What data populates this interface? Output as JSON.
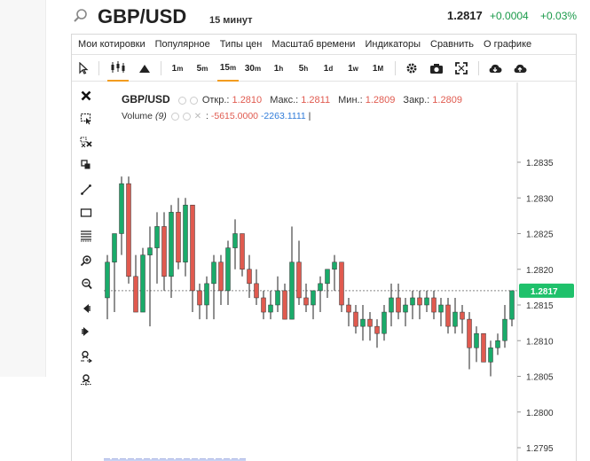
{
  "header": {
    "symbol": "GBP/USD",
    "timeframe": "15 минут",
    "price": "1.2817",
    "change": "+0.0004",
    "change_pct": "+0.03%"
  },
  "menu": [
    "Мои котировки",
    "Популярное",
    "Типы цен",
    "Масштаб времени",
    "Индикаторы",
    "Сравнить",
    "О графике"
  ],
  "toolbar": {
    "intervals": [
      "1",
      "5",
      "15",
      "30",
      "1",
      "5",
      "1",
      "1",
      "1"
    ],
    "interval_units": [
      "m",
      "m",
      "m",
      "m",
      "h",
      "h",
      "d",
      "w",
      "M"
    ],
    "active_interval": "15m"
  },
  "legend": {
    "symbol": "GBP/USD",
    "open_label": "Откр.:",
    "open": "1.2810",
    "high_label": "Макс.:",
    "high": "1.2811",
    "low_label": "Мин.:",
    "low": "1.2809",
    "close_label": "Закр.:",
    "close": "1.2809",
    "volume_label": "Volume",
    "volume_period": "(9)",
    "volume_val1": "-5615.0000",
    "volume_val2": "-2263.1111",
    "cursor_mark": "|"
  },
  "axis": {
    "ticks": [
      "1.2835",
      "1.2830",
      "1.2825",
      "1.2820",
      "1.2815",
      "1.2810",
      "1.2805",
      "1.2800",
      "1.2795"
    ],
    "current_price_label": "1.2817"
  },
  "colors": {
    "up": "#1aab6a",
    "down": "#e05a4f",
    "accent": "#f29c1f",
    "price_tag": "#1fc16b"
  },
  "chart_data": {
    "type": "candlestick",
    "title": "GBP/USD",
    "ylim": [
      1.2794,
      1.284
    ],
    "candles": [
      {
        "o": 1.2816,
        "h": 1.2822,
        "l": 1.2813,
        "c": 1.2821
      },
      {
        "o": 1.2821,
        "h": 1.2825,
        "l": 1.2814,
        "c": 1.2825
      },
      {
        "o": 1.2825,
        "h": 1.2833,
        "l": 1.2822,
        "c": 1.2832
      },
      {
        "o": 1.2832,
        "h": 1.2833,
        "l": 1.2818,
        "c": 1.2819
      },
      {
        "o": 1.2819,
        "h": 1.2822,
        "l": 1.2814,
        "c": 1.2814
      },
      {
        "o": 1.2814,
        "h": 1.2823,
        "l": 1.2814,
        "c": 1.2822
      },
      {
        "o": 1.2822,
        "h": 1.2826,
        "l": 1.2812,
        "c": 1.2823
      },
      {
        "o": 1.2823,
        "h": 1.2828,
        "l": 1.2818,
        "c": 1.2826
      },
      {
        "o": 1.2826,
        "h": 1.2828,
        "l": 1.2817,
        "c": 1.2819
      },
      {
        "o": 1.2819,
        "h": 1.2829,
        "l": 1.2816,
        "c": 1.2828
      },
      {
        "o": 1.2828,
        "h": 1.283,
        "l": 1.282,
        "c": 1.2821
      },
      {
        "o": 1.2821,
        "h": 1.283,
        "l": 1.2819,
        "c": 1.2829
      },
      {
        "o": 1.2829,
        "h": 1.2829,
        "l": 1.2814,
        "c": 1.2817
      },
      {
        "o": 1.2817,
        "h": 1.2818,
        "l": 1.2813,
        "c": 1.2815
      },
      {
        "o": 1.2815,
        "h": 1.2819,
        "l": 1.2813,
        "c": 1.2818
      },
      {
        "o": 1.2818,
        "h": 1.2822,
        "l": 1.2813,
        "c": 1.2821
      },
      {
        "o": 1.2821,
        "h": 1.2822,
        "l": 1.2815,
        "c": 1.2817
      },
      {
        "o": 1.2817,
        "h": 1.2824,
        "l": 1.2815,
        "c": 1.2823
      },
      {
        "o": 1.2823,
        "h": 1.2827,
        "l": 1.282,
        "c": 1.2825
      },
      {
        "o": 1.2825,
        "h": 1.2825,
        "l": 1.2819,
        "c": 1.282
      },
      {
        "o": 1.282,
        "h": 1.2822,
        "l": 1.2816,
        "c": 1.2818
      },
      {
        "o": 1.2818,
        "h": 1.282,
        "l": 1.2815,
        "c": 1.2816
      },
      {
        "o": 1.2816,
        "h": 1.2817,
        "l": 1.2813,
        "c": 1.2814
      },
      {
        "o": 1.2814,
        "h": 1.2817,
        "l": 1.2813,
        "c": 1.2815
      },
      {
        "o": 1.2815,
        "h": 1.2819,
        "l": 1.2814,
        "c": 1.2817
      },
      {
        "o": 1.2817,
        "h": 1.2818,
        "l": 1.2813,
        "c": 1.2813
      },
      {
        "o": 1.2813,
        "h": 1.2826,
        "l": 1.2813,
        "c": 1.2821
      },
      {
        "o": 1.2821,
        "h": 1.2824,
        "l": 1.2815,
        "c": 1.2816
      },
      {
        "o": 1.2816,
        "h": 1.2818,
        "l": 1.2814,
        "c": 1.2815
      },
      {
        "o": 1.2815,
        "h": 1.2817,
        "l": 1.2813,
        "c": 1.2817
      },
      {
        "o": 1.2817,
        "h": 1.2819,
        "l": 1.2814,
        "c": 1.2818
      },
      {
        "o": 1.2818,
        "h": 1.282,
        "l": 1.2816,
        "c": 1.282
      },
      {
        "o": 1.282,
        "h": 1.2822,
        "l": 1.2817,
        "c": 1.2821
      },
      {
        "o": 1.2821,
        "h": 1.2821,
        "l": 1.2814,
        "c": 1.2815
      },
      {
        "o": 1.2815,
        "h": 1.2816,
        "l": 1.2812,
        "c": 1.2814
      },
      {
        "o": 1.2814,
        "h": 1.2815,
        "l": 1.2811,
        "c": 1.2812
      },
      {
        "o": 1.2812,
        "h": 1.2815,
        "l": 1.281,
        "c": 1.2813
      },
      {
        "o": 1.2813,
        "h": 1.2814,
        "l": 1.281,
        "c": 1.2812
      },
      {
        "o": 1.2812,
        "h": 1.2813,
        "l": 1.2809,
        "c": 1.2811
      },
      {
        "o": 1.2811,
        "h": 1.2815,
        "l": 1.281,
        "c": 1.2814
      },
      {
        "o": 1.2814,
        "h": 1.2818,
        "l": 1.2812,
        "c": 1.2816
      },
      {
        "o": 1.2816,
        "h": 1.2818,
        "l": 1.2813,
        "c": 1.2814
      },
      {
        "o": 1.2814,
        "h": 1.2816,
        "l": 1.2812,
        "c": 1.2815
      },
      {
        "o": 1.2815,
        "h": 1.2817,
        "l": 1.2813,
        "c": 1.2816
      },
      {
        "o": 1.2816,
        "h": 1.2817,
        "l": 1.2813,
        "c": 1.2815
      },
      {
        "o": 1.2815,
        "h": 1.2817,
        "l": 1.2814,
        "c": 1.2816
      },
      {
        "o": 1.2816,
        "h": 1.2817,
        "l": 1.2813,
        "c": 1.2814
      },
      {
        "o": 1.2814,
        "h": 1.2816,
        "l": 1.2812,
        "c": 1.2815
      },
      {
        "o": 1.2815,
        "h": 1.2816,
        "l": 1.2811,
        "c": 1.2812
      },
      {
        "o": 1.2812,
        "h": 1.2816,
        "l": 1.2811,
        "c": 1.2814
      },
      {
        "o": 1.2814,
        "h": 1.2815,
        "l": 1.2811,
        "c": 1.2813
      },
      {
        "o": 1.2813,
        "h": 1.2814,
        "l": 1.2806,
        "c": 1.2809
      },
      {
        "o": 1.2809,
        "h": 1.2812,
        "l": 1.2807,
        "c": 1.2811
      },
      {
        "o": 1.2811,
        "h": 1.2811,
        "l": 1.2807,
        "c": 1.2807
      },
      {
        "o": 1.2807,
        "h": 1.281,
        "l": 1.2805,
        "c": 1.2809
      },
      {
        "o": 1.2809,
        "h": 1.2811,
        "l": 1.2808,
        "c": 1.281
      },
      {
        "o": 1.281,
        "h": 1.2815,
        "l": 1.2809,
        "c": 1.2813
      },
      {
        "o": 1.2813,
        "h": 1.2817,
        "l": 1.2812,
        "c": 1.2817
      }
    ]
  }
}
